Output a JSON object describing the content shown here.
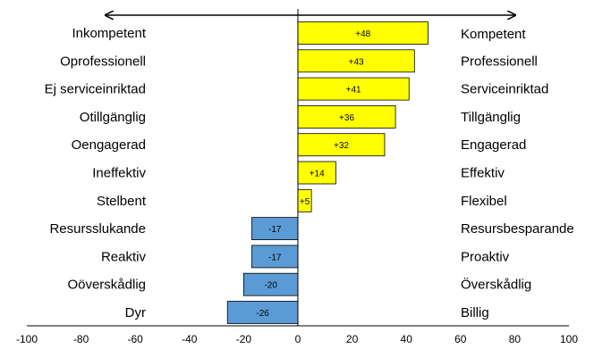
{
  "chart_data": {
    "type": "bar",
    "orientation": "horizontal",
    "categories_left": [
      "Inkompetent",
      "Oprofessionell",
      "Ej serviceinriktad",
      "Otillgänglig",
      "Oengagerad",
      "Ineffektiv",
      "Stelbent",
      "Resursslukande",
      "Reaktiv",
      "Oöverskådlig",
      "Dyr"
    ],
    "categories_right": [
      "Kompetent",
      "Professionell",
      "Serviceinriktad",
      "Tillgänglig",
      "Engagerad",
      "Effektiv",
      "Flexibel",
      "Resursbesparande",
      "Proaktiv",
      "Överskådlig",
      "Billig"
    ],
    "values": [
      48,
      43,
      41,
      36,
      32,
      14,
      5,
      -17,
      -17,
      -20,
      -26
    ],
    "value_labels": [
      "+48",
      "+43",
      "+41",
      "+36",
      "+32",
      "+14",
      "+5",
      "-17",
      "-17",
      "-20",
      "-26"
    ],
    "xlim": [
      -100,
      100
    ],
    "xticks": [
      -100,
      -80,
      -60,
      -40,
      -20,
      0,
      20,
      40,
      60,
      80,
      100
    ],
    "colors": {
      "positive": "#FFFF00",
      "negative": "#5B9BD5",
      "edge": "#000000"
    },
    "arrow": "double-headed horizontal arrow above bars",
    "grid": false,
    "title": "",
    "xlabel": "",
    "ylabel": ""
  }
}
